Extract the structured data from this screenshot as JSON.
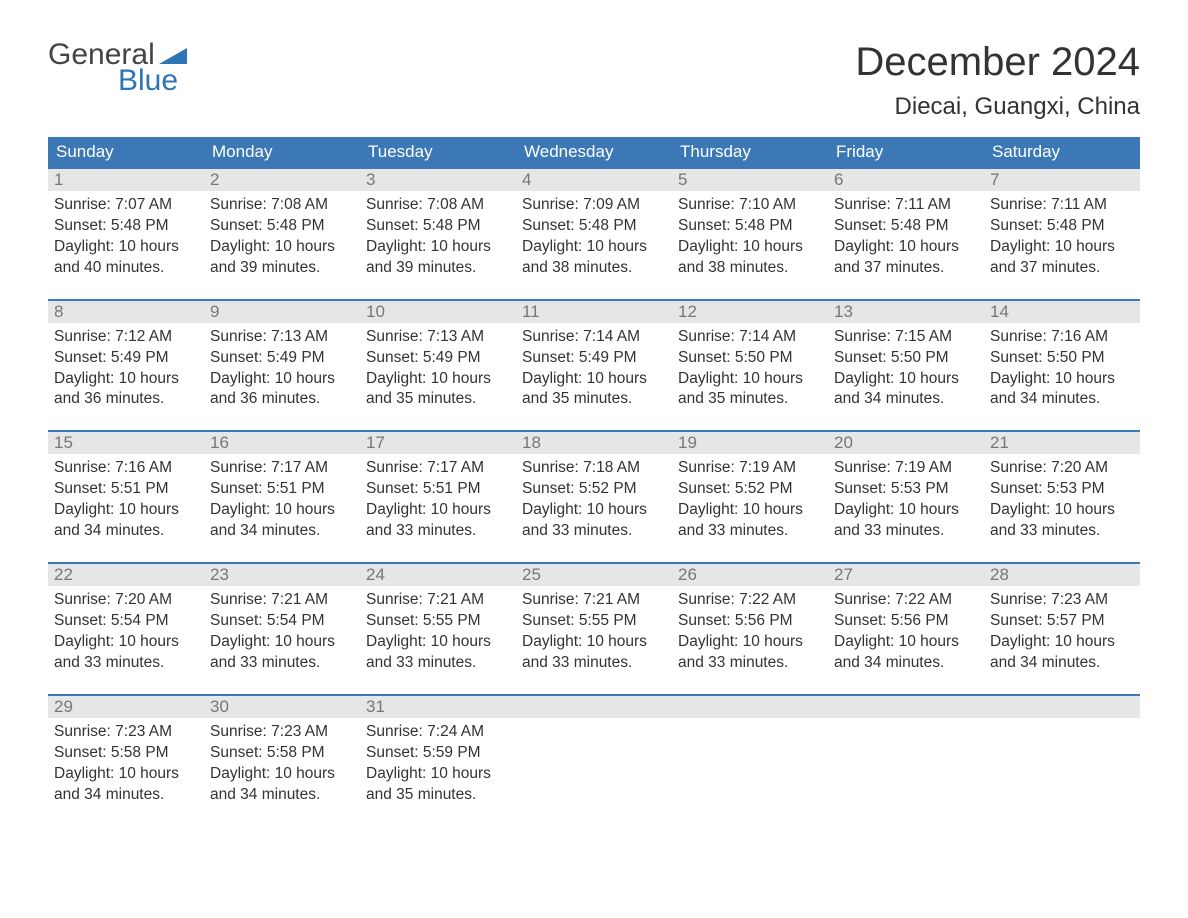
{
  "logo": {
    "word1": "General",
    "word2": "Blue",
    "triangle_color": "#2e75b6"
  },
  "title": "December 2024",
  "location": "Diecai, Guangxi, China",
  "colors": {
    "header_bg": "#3b78b5",
    "header_text": "#ffffff",
    "daynum_bg": "#e6e6e6",
    "daynum_text": "#777777",
    "body_text": "#333333",
    "week_border": "#3b78b5",
    "page_bg": "#ffffff"
  },
  "typography": {
    "title_fontsize": 40,
    "location_fontsize": 24,
    "dow_fontsize": 17,
    "daynum_fontsize": 17,
    "body_fontsize": 15.5,
    "font_family": "Arial"
  },
  "days_of_week": [
    "Sunday",
    "Monday",
    "Tuesday",
    "Wednesday",
    "Thursday",
    "Friday",
    "Saturday"
  ],
  "labels": {
    "sunrise": "Sunrise:",
    "sunset": "Sunset:",
    "daylight": "Daylight:"
  },
  "weeks": [
    [
      {
        "n": "1",
        "sunrise": "7:07 AM",
        "sunset": "5:48 PM",
        "daylight": "10 hours and 40 minutes."
      },
      {
        "n": "2",
        "sunrise": "7:08 AM",
        "sunset": "5:48 PM",
        "daylight": "10 hours and 39 minutes."
      },
      {
        "n": "3",
        "sunrise": "7:08 AM",
        "sunset": "5:48 PM",
        "daylight": "10 hours and 39 minutes."
      },
      {
        "n": "4",
        "sunrise": "7:09 AM",
        "sunset": "5:48 PM",
        "daylight": "10 hours and 38 minutes."
      },
      {
        "n": "5",
        "sunrise": "7:10 AM",
        "sunset": "5:48 PM",
        "daylight": "10 hours and 38 minutes."
      },
      {
        "n": "6",
        "sunrise": "7:11 AM",
        "sunset": "5:48 PM",
        "daylight": "10 hours and 37 minutes."
      },
      {
        "n": "7",
        "sunrise": "7:11 AM",
        "sunset": "5:48 PM",
        "daylight": "10 hours and 37 minutes."
      }
    ],
    [
      {
        "n": "8",
        "sunrise": "7:12 AM",
        "sunset": "5:49 PM",
        "daylight": "10 hours and 36 minutes."
      },
      {
        "n": "9",
        "sunrise": "7:13 AM",
        "sunset": "5:49 PM",
        "daylight": "10 hours and 36 minutes."
      },
      {
        "n": "10",
        "sunrise": "7:13 AM",
        "sunset": "5:49 PM",
        "daylight": "10 hours and 35 minutes."
      },
      {
        "n": "11",
        "sunrise": "7:14 AM",
        "sunset": "5:49 PM",
        "daylight": "10 hours and 35 minutes."
      },
      {
        "n": "12",
        "sunrise": "7:14 AM",
        "sunset": "5:50 PM",
        "daylight": "10 hours and 35 minutes."
      },
      {
        "n": "13",
        "sunrise": "7:15 AM",
        "sunset": "5:50 PM",
        "daylight": "10 hours and 34 minutes."
      },
      {
        "n": "14",
        "sunrise": "7:16 AM",
        "sunset": "5:50 PM",
        "daylight": "10 hours and 34 minutes."
      }
    ],
    [
      {
        "n": "15",
        "sunrise": "7:16 AM",
        "sunset": "5:51 PM",
        "daylight": "10 hours and 34 minutes."
      },
      {
        "n": "16",
        "sunrise": "7:17 AM",
        "sunset": "5:51 PM",
        "daylight": "10 hours and 34 minutes."
      },
      {
        "n": "17",
        "sunrise": "7:17 AM",
        "sunset": "5:51 PM",
        "daylight": "10 hours and 33 minutes."
      },
      {
        "n": "18",
        "sunrise": "7:18 AM",
        "sunset": "5:52 PM",
        "daylight": "10 hours and 33 minutes."
      },
      {
        "n": "19",
        "sunrise": "7:19 AM",
        "sunset": "5:52 PM",
        "daylight": "10 hours and 33 minutes."
      },
      {
        "n": "20",
        "sunrise": "7:19 AM",
        "sunset": "5:53 PM",
        "daylight": "10 hours and 33 minutes."
      },
      {
        "n": "21",
        "sunrise": "7:20 AM",
        "sunset": "5:53 PM",
        "daylight": "10 hours and 33 minutes."
      }
    ],
    [
      {
        "n": "22",
        "sunrise": "7:20 AM",
        "sunset": "5:54 PM",
        "daylight": "10 hours and 33 minutes."
      },
      {
        "n": "23",
        "sunrise": "7:21 AM",
        "sunset": "5:54 PM",
        "daylight": "10 hours and 33 minutes."
      },
      {
        "n": "24",
        "sunrise": "7:21 AM",
        "sunset": "5:55 PM",
        "daylight": "10 hours and 33 minutes."
      },
      {
        "n": "25",
        "sunrise": "7:21 AM",
        "sunset": "5:55 PM",
        "daylight": "10 hours and 33 minutes."
      },
      {
        "n": "26",
        "sunrise": "7:22 AM",
        "sunset": "5:56 PM",
        "daylight": "10 hours and 33 minutes."
      },
      {
        "n": "27",
        "sunrise": "7:22 AM",
        "sunset": "5:56 PM",
        "daylight": "10 hours and 34 minutes."
      },
      {
        "n": "28",
        "sunrise": "7:23 AM",
        "sunset": "5:57 PM",
        "daylight": "10 hours and 34 minutes."
      }
    ],
    [
      {
        "n": "29",
        "sunrise": "7:23 AM",
        "sunset": "5:58 PM",
        "daylight": "10 hours and 34 minutes."
      },
      {
        "n": "30",
        "sunrise": "7:23 AM",
        "sunset": "5:58 PM",
        "daylight": "10 hours and 34 minutes."
      },
      {
        "n": "31",
        "sunrise": "7:24 AM",
        "sunset": "5:59 PM",
        "daylight": "10 hours and 35 minutes."
      },
      null,
      null,
      null,
      null
    ]
  ]
}
